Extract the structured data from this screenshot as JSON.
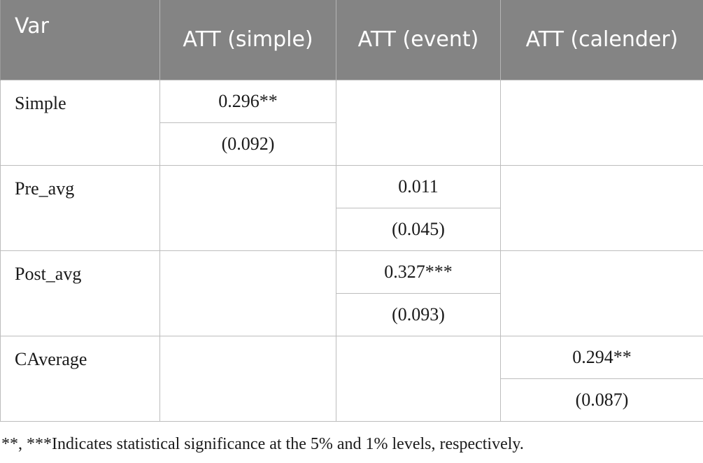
{
  "headers": [
    "Var",
    "ATT (simple)",
    "ATT (event)",
    "ATT (calender)"
  ],
  "rows": [
    {
      "var": "Simple",
      "column": 1,
      "estimate": "0.296**",
      "se": "(0.092)"
    },
    {
      "var": "Pre_avg",
      "column": 2,
      "estimate": "0.011",
      "se": "(0.045)"
    },
    {
      "var": "Post_avg",
      "column": 2,
      "estimate": "0.327***",
      "se": "(0.093)"
    },
    {
      "var": "CAverage",
      "column": 3,
      "estimate": "0.294**",
      "se": "(0.087)"
    }
  ],
  "footnote": "**, ***Indicates statistical significance at the 5% and 1% levels, respectively.",
  "colors": {
    "header_bg": "#848484",
    "header_text": "#ffffff",
    "border": "#bdbdbd"
  }
}
